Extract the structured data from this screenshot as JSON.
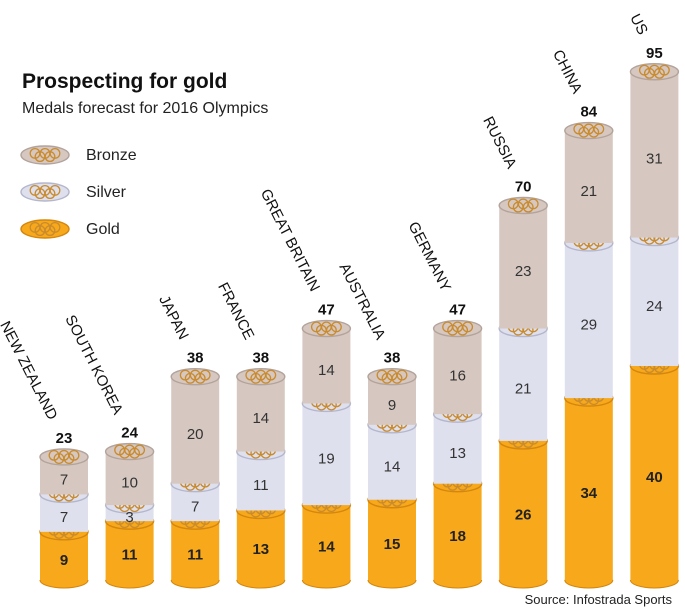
{
  "chart_data": {
    "type": "bar",
    "stacked": true,
    "title": "Prospecting for gold",
    "subtitle": "Medals forecast for 2016 Olympics",
    "source": "Source: Infostrada Sports",
    "categories": [
      "NEW ZEALAND",
      "SOUTH KOREA",
      "JAPAN",
      "FRANCE",
      "GREAT BRITAIN",
      "AUSTRALIA",
      "GERMANY",
      "RUSSIA",
      "CHINA",
      "US"
    ],
    "totals": [
      23,
      24,
      38,
      38,
      47,
      38,
      47,
      70,
      84,
      95
    ],
    "series": [
      {
        "name": "Gold",
        "values": [
          9,
          11,
          11,
          13,
          14,
          15,
          18,
          26,
          34,
          40
        ]
      },
      {
        "name": "Silver",
        "values": [
          7,
          3,
          7,
          11,
          19,
          14,
          13,
          21,
          29,
          24
        ]
      },
      {
        "name": "Bronze",
        "values": [
          7,
          10,
          20,
          14,
          14,
          9,
          16,
          23,
          21,
          31
        ]
      }
    ],
    "legend": {
      "position": "top-left",
      "order": [
        "Bronze",
        "Silver",
        "Gold"
      ]
    },
    "colors": {
      "Gold": "#f7a81b",
      "Gold_dark": "#d4860d",
      "Silver": "#dfe0ee",
      "Silver_dark": "#b4b6cc",
      "Bronze": "#d6c8c1",
      "Bronze_dark": "#b3a39b",
      "rings": "#c98b2e"
    }
  }
}
